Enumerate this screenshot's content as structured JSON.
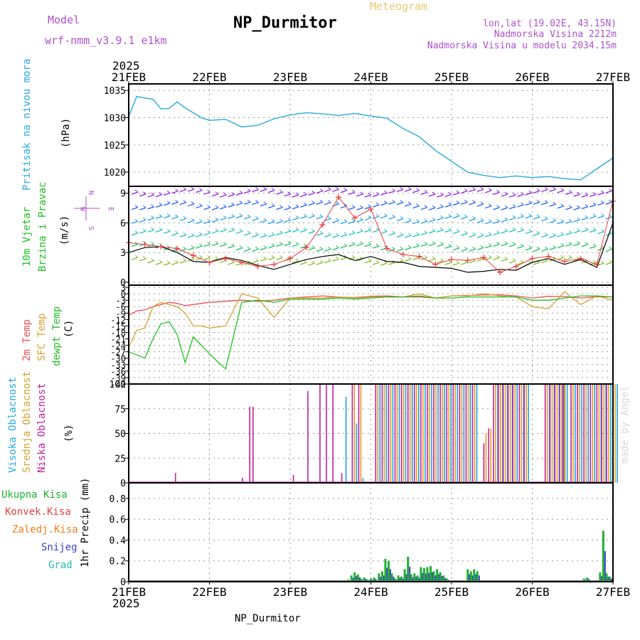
{
  "header": {
    "model_label": "Model",
    "model_name": "wrf-nmm_v3.9.1 e1km",
    "title": "NP_Durmitor",
    "subtitle": "Meteogram",
    "lonlat": "lon,lat (19.02E, 43.15N)",
    "altitude": "Nadmorska Visina 2212m",
    "model_altitude": "Nadmorska Visina u modelu 2034.15m",
    "credit": "made by Angel",
    "footer_station": "NP_Durmitor"
  },
  "colors": {
    "pressure": "#29a8e0",
    "wind_speed": "#000000",
    "gust": "#e84040",
    "temp2m": "#e85050",
    "sfc_temp": "#d8a030",
    "dewpt": "#20c020",
    "high_cloud": "#20a0e0",
    "mid_cloud": "#e0a020",
    "low_cloud": "#c020a0",
    "total_precip": "#20b030",
    "conv_precip": "#e84040",
    "frozen_precip": "#f08020",
    "snow": "#4040d0",
    "hail": "#20c0b0",
    "meteogram": "#e8c870",
    "header_purple": "#b050d0"
  },
  "time_axis": {
    "year": "2025",
    "ticks": [
      "21FEB",
      "22FEB",
      "23FEB",
      "24FEB",
      "25FEB",
      "26FEB",
      "27FEB"
    ]
  },
  "panels": {
    "pressure": {
      "label": "Pritisak na nivou mora",
      "unit": "(hPa)",
      "yticks": [
        "1035",
        "1030",
        "1025",
        "1020"
      ]
    },
    "wind": {
      "label1": "10m Vjetar",
      "label2": "Brzina i Pravac",
      "unit": "(m/s)",
      "compass_n": "N",
      "compass_w": "W",
      "compass_e": "E",
      "compass_s": "S",
      "yticks": [
        "9",
        "6",
        "3",
        "0"
      ]
    },
    "temp": {
      "label1": "2m Temp",
      "label2": "SFC Temp",
      "label3": "dewpt Temp",
      "unit": "(C)",
      "yticks": [
        "3",
        "0",
        "-3",
        "-6",
        "-9",
        "-12",
        "-15",
        "-18",
        "-21",
        "-24",
        "-27",
        "-30",
        "-33",
        "-36",
        "-39",
        "-42"
      ]
    },
    "cloud": {
      "label1": "Visoka Oblacnost",
      "label2": "Srednja Oblacnost",
      "label3": "Niska Oblacnost",
      "unit": "(%)",
      "yticks": [
        "100",
        "75",
        "50",
        "25",
        "0"
      ]
    },
    "precip": {
      "legend": [
        "Ukupna Kisa",
        "Konvek.Kisa",
        "Zaledj.Kisa",
        "Snijeg",
        "Grad"
      ],
      "unit": "1hr Precip (mm)",
      "yticks": [
        "0.8",
        "0.6",
        "0.4",
        "0.2",
        "0"
      ]
    }
  },
  "chart_data": [
    {
      "type": "line",
      "title": "Pritisak na nivou mora",
      "ylabel": "(hPa)",
      "ylim": [
        1017.4,
        1036.2
      ],
      "x": [
        0,
        0.1,
        0.2,
        0.3,
        0.4,
        0.5,
        0.6,
        0.7,
        0.8,
        0.9,
        1.0,
        1.2,
        1.4,
        1.6,
        1.8,
        2.0,
        2.2,
        2.4,
        2.6,
        2.8,
        3.0,
        3.2,
        3.4,
        3.6,
        3.8,
        4.0,
        4.2,
        4.4,
        4.6,
        4.8,
        5.0,
        5.2,
        5.4,
        5.6,
        5.8,
        6.0
      ],
      "series": [
        {
          "values": [
            1030.2,
            1033.9,
            1033.6,
            1033.4,
            1031.6,
            1031.7,
            1032.9,
            1031.8,
            1030.9,
            1030.0,
            1029.5,
            1029.7,
            1028.3,
            1028.6,
            1029.8,
            1030.5,
            1030.9,
            1030.7,
            1030.4,
            1030.8,
            1030.3,
            1029.9,
            1028.0,
            1026.5,
            1024.0,
            1022.0,
            1020.0,
            1019.4,
            1019.0,
            1019.3,
            1019.0,
            1019.2,
            1018.8,
            1018.6,
            1020.6,
            1022.6
          ]
        }
      ]
    },
    {
      "type": "line",
      "title": "10m Vjetar Brzina i Pravac",
      "ylabel": "(m/s)",
      "ylim": [
        -0.3,
        9.7
      ],
      "x": [
        0,
        0.2,
        0.4,
        0.6,
        0.8,
        1.0,
        1.2,
        1.4,
        1.6,
        1.8,
        2.0,
        2.2,
        2.4,
        2.6,
        2.8,
        3.0,
        3.2,
        3.4,
        3.6,
        3.8,
        4.0,
        4.2,
        4.4,
        4.6,
        4.8,
        5.0,
        5.2,
        5.4,
        5.6,
        5.8,
        6.0
      ],
      "series": [
        {
          "values": [
            3.0,
            3.5,
            3.6,
            3.0,
            2.1,
            2.0,
            2.5,
            2.2,
            1.7,
            1.3,
            1.8,
            2.3,
            2.6,
            2.8,
            2.2,
            2.6,
            2.1,
            2.0,
            1.6,
            1.5,
            1.4,
            1.0,
            1.1,
            1.3,
            1.2,
            2.0,
            2.4,
            1.8,
            2.3,
            1.5,
            6.0
          ]
        },
        {
          "values": [
            4.0,
            3.8,
            3.6,
            3.4,
            2.7,
            2.0,
            2.4,
            2.0,
            1.6,
            1.8,
            2.4,
            3.5,
            5.8,
            8.6,
            6.5,
            7.4,
            3.4,
            2.8,
            2.6,
            1.8,
            2.3,
            2.2,
            2.5,
            1.0,
            1.6,
            2.4,
            2.6,
            2.1,
            2.4,
            1.8,
            8.2
          ]
        }
      ]
    },
    {
      "type": "line",
      "title": "2m Temp / SFC Temp / dewpt Temp",
      "ylabel": "(C)",
      "ylim": [
        -42,
        4
      ],
      "x": [
        0,
        0.1,
        0.2,
        0.3,
        0.4,
        0.5,
        0.6,
        0.7,
        0.8,
        0.9,
        1.0,
        1.2,
        1.4,
        1.6,
        1.8,
        2.0,
        2.2,
        2.4,
        2.6,
        2.8,
        3.0,
        3.2,
        3.4,
        3.6,
        3.8,
        4.0,
        4.2,
        4.4,
        4.6,
        4.8,
        5.0,
        5.2,
        5.4,
        5.6,
        5.8,
        6.0
      ],
      "series": [
        {
          "values": [
            -10,
            -8,
            -7.5,
            -6,
            -5,
            -4,
            -4.5,
            -5.5,
            -5,
            -4.5,
            -4,
            -3.5,
            -3,
            -3.5,
            -3,
            -2,
            -1.5,
            -1,
            -1.5,
            -1.8,
            -1.2,
            -1,
            -1.5,
            -1.5,
            -2,
            -1,
            -0.8,
            -0.6,
            -0.5,
            -1,
            -2,
            -1.2,
            -1.3,
            -2,
            -1.4,
            -1.5
          ]
        },
        {
          "values": [
            -25,
            -17,
            -16,
            -6,
            -4,
            -5,
            -6,
            -9,
            -15,
            -15,
            -16,
            -15,
            0,
            -2,
            -11,
            -2,
            -2,
            -2,
            -1.5,
            -2,
            -1.5,
            -1.5,
            -1.5,
            0,
            -2,
            -1,
            -1,
            0,
            -1,
            -1.5,
            -6,
            -7,
            1,
            -5,
            -1,
            -3
          ]
        },
        {
          "values": [
            -27,
            -28.5,
            -30,
            -21,
            -14,
            -13,
            -19,
            -32,
            -20,
            -24,
            -28,
            -35,
            -4,
            -3,
            -4,
            -2.5,
            -2.5,
            -2.5,
            -2,
            -2.5,
            -2,
            -1.5,
            -1.5,
            -1,
            -2,
            -2,
            -1.5,
            -1.5,
            -1.5,
            -1.5,
            -3,
            -3,
            -2,
            -1,
            -1,
            -1.5
          ]
        }
      ]
    },
    {
      "type": "bar",
      "title": "Visoka / Srednja / Niska Oblacnost",
      "ylabel": "(%)",
      "ylim": [
        0,
        100
      ],
      "x": [
        0.58,
        1.41,
        1.5,
        1.54,
        2.04,
        2.22,
        2.37,
        2.45,
        2.53,
        2.64,
        2.77,
        2.85,
        3.06,
        3.14,
        3.22,
        3.3,
        3.38,
        3.46,
        3.54,
        3.62,
        3.7,
        3.78,
        3.86,
        3.94,
        4.02,
        4.1,
        4.18,
        4.26,
        4.4,
        4.46,
        4.52,
        4.58,
        4.64,
        4.7,
        4.76,
        4.84,
        4.9,
        5.16,
        5.22,
        5.28,
        5.34,
        5.38,
        5.48,
        5.56,
        5.64,
        5.72,
        5.8,
        5.86,
        5.92,
        6.0
      ],
      "series": [
        {
          "name": "Niska Oblacnost",
          "values": [
            10,
            5,
            77,
            77,
            8,
            93,
            100,
            100,
            100,
            10,
            100,
            100,
            100,
            100,
            100,
            100,
            100,
            100,
            100,
            100,
            100,
            100,
            100,
            100,
            100,
            100,
            100,
            100,
            40,
            55,
            100,
            100,
            100,
            100,
            100,
            100,
            100,
            100,
            100,
            100,
            100,
            100,
            100,
            100,
            100,
            100,
            100,
            100,
            100,
            100
          ]
        },
        {
          "name": "Srednja Oblacnost",
          "values": [
            0,
            0,
            0,
            0,
            0,
            0,
            0,
            0,
            0,
            0,
            100,
            100,
            100,
            100,
            100,
            100,
            100,
            100,
            100,
            100,
            100,
            100,
            100,
            100,
            100,
            100,
            100,
            100,
            50,
            55,
            100,
            100,
            100,
            100,
            100,
            100,
            100,
            100,
            100,
            100,
            100,
            100,
            100,
            100,
            100,
            100,
            100,
            100,
            100,
            100
          ]
        },
        {
          "name": "Visoka Oblacnost",
          "values": [
            0,
            0,
            0,
            0,
            0,
            0,
            0,
            0,
            0,
            87,
            60,
            5,
            100,
            100,
            100,
            100,
            100,
            100,
            100,
            100,
            100,
            100,
            100,
            100,
            100,
            100,
            100,
            100,
            0,
            0,
            100,
            100,
            100,
            100,
            100,
            100,
            100,
            100,
            100,
            100,
            100,
            100,
            100,
            100,
            100,
            100,
            100,
            100,
            100,
            100
          ]
        }
      ]
    },
    {
      "type": "bar",
      "title": "1hr Precip",
      "ylabel": "(mm)",
      "ylim": [
        0,
        0.95
      ],
      "x": [
        2.72,
        2.76,
        2.8,
        2.84,
        2.88,
        2.92,
        2.96,
        3.0,
        3.04,
        3.1,
        3.14,
        3.18,
        3.22,
        3.26,
        3.3,
        3.34,
        3.38,
        3.42,
        3.46,
        3.5,
        3.54,
        3.58,
        3.62,
        3.66,
        3.7,
        3.74,
        3.78,
        3.82,
        3.86,
        3.9,
        3.94,
        4.2,
        4.24,
        4.28,
        4.32,
        5.64,
        5.68,
        5.84,
        5.88,
        5.92,
        5.96
      ],
      "series": [
        {
          "name": "Ukupna Kisa",
          "values": [
            0.02,
            0.06,
            0.09,
            0.07,
            0.03,
            0.04,
            0.02,
            0.03,
            0.04,
            0.08,
            0.1,
            0.22,
            0.2,
            0.08,
            0.03,
            0.06,
            0.05,
            0.12,
            0.24,
            0.07,
            0.08,
            0.06,
            0.14,
            0.13,
            0.14,
            0.15,
            0.1,
            0.12,
            0.09,
            0.06,
            0.03,
            0.12,
            0.1,
            0.12,
            0.1,
            0.03,
            0.04,
            0.09,
            0.49,
            0.08,
            0.05
          ]
        }
      ]
    }
  ]
}
